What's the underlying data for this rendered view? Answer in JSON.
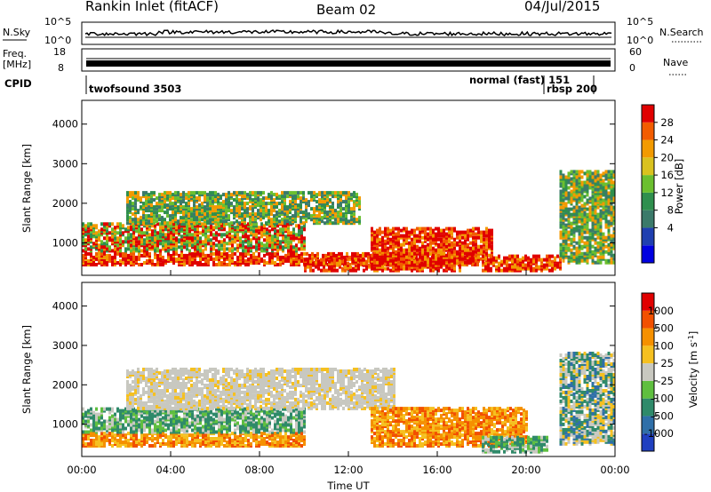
{
  "header": {
    "title": "Rankin Inlet (fitACF)",
    "beam": "Beam 02",
    "date": "04/Jul/2015"
  },
  "top_panels": {
    "nsky_label": "N.Sky",
    "nsearch_label": "N.Search",
    "nsky_ticks": [
      "10^5",
      "10^0"
    ],
    "nsearch_ticks": [
      "10^5",
      "10^0"
    ],
    "freq_label_1": "Freq.",
    "freq_label_2": "[MHz]",
    "freq_ticks": [
      "18",
      "8"
    ],
    "nave_label": "Nave",
    "nave_ticks": [
      "60",
      "0"
    ],
    "cpid_label": "CPID",
    "cpid_entries": [
      {
        "text": "twofsound 3503"
      },
      {
        "text": "normal (fast) 151"
      },
      {
        "text": "rbsp 200"
      }
    ]
  },
  "chart_data": [
    {
      "type": "heatmap",
      "name": "power",
      "ylabel": "Slant Range [km]",
      "xlabel": "",
      "xlim": [
        "00:00",
        "24:00"
      ],
      "ylim": [
        180,
        4600
      ],
      "yticks": [
        "4000",
        "3000",
        "2000",
        "1000"
      ],
      "colorbar": {
        "label": "Power [dB]",
        "ticks": [
          "28",
          "24",
          "20",
          "16",
          "12",
          "8",
          "4"
        ],
        "colors": [
          "#0000e0",
          "#1f3fb0",
          "#3b7a6a",
          "#2f8f4e",
          "#6bbf2f",
          "#d9c21f",
          "#f29a00",
          "#f25c00",
          "#e00000"
        ]
      },
      "regions": [
        {
          "t": [
            0.0,
            17.8
          ],
          "range": [
            450,
            750
          ],
          "level": "high"
        },
        {
          "t": [
            0.0,
            10.0
          ],
          "range": [
            800,
            1500
          ],
          "level": "mid"
        },
        {
          "t": [
            2.0,
            12.5
          ],
          "range": [
            1500,
            2300
          ],
          "level": "low"
        },
        {
          "t": [
            10.0,
            17.0
          ],
          "range": [
            300,
            600
          ],
          "level": "high"
        },
        {
          "t": [
            13.0,
            18.5
          ],
          "range": [
            500,
            1400
          ],
          "level": "high"
        },
        {
          "t": [
            18.0,
            21.5
          ],
          "range": [
            300,
            700
          ],
          "level": "high"
        },
        {
          "t": [
            21.5,
            24.0
          ],
          "range": [
            500,
            2800
          ],
          "level": "low"
        }
      ]
    },
    {
      "type": "heatmap",
      "name": "velocity",
      "ylabel": "Slant Range [km]",
      "xlabel": "Time UT",
      "xlim": [
        "00:00",
        "24:00"
      ],
      "ylim": [
        180,
        4600
      ],
      "yticks": [
        "4000",
        "3000",
        "2000",
        "1000"
      ],
      "xticks": [
        "00:00",
        "04:00",
        "08:00",
        "12:00",
        "16:00",
        "20:00",
        "00:00"
      ],
      "colorbar": {
        "label": "Velocity [m s^-1]",
        "ticks": [
          "1000",
          "500",
          "100",
          "25",
          "-25",
          "-100",
          "-500",
          "-1000"
        ],
        "colors": [
          "#2040c0",
          "#2f6fa8",
          "#2f8a6a",
          "#5fbf3f",
          "#c8c8c0",
          "#f5c020",
          "#f59000",
          "#f25000",
          "#e00000"
        ]
      },
      "regions": [
        {
          "t": [
            0.0,
            10.0
          ],
          "range": [
            450,
            800
          ],
          "level": "toward"
        },
        {
          "t": [
            0.0,
            10.0
          ],
          "range": [
            800,
            1400
          ],
          "level": "away"
        },
        {
          "t": [
            2.0,
            14.0
          ],
          "range": [
            1400,
            2400
          ],
          "level": "ground"
        },
        {
          "t": [
            13.0,
            20.0
          ],
          "range": [
            450,
            1400
          ],
          "level": "toward"
        },
        {
          "t": [
            18.0,
            21.0
          ],
          "range": [
            300,
            700
          ],
          "level": "away"
        },
        {
          "t": [
            21.5,
            24.0
          ],
          "range": [
            500,
            2800
          ],
          "level": "mixed"
        }
      ]
    }
  ]
}
